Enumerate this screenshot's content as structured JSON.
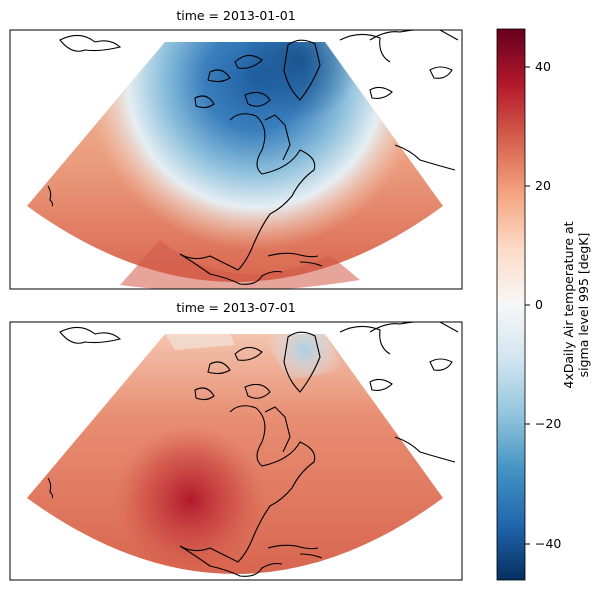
{
  "panels": [
    {
      "title": "time = 2013-01-01",
      "date": "2013-01-01"
    },
    {
      "title": "time = 2013-07-01",
      "date": "2013-07-01"
    }
  ],
  "colorbar": {
    "label_line1": "4xDaily Air temperature at",
    "label_line2": "sigma level 995 [degK]",
    "min": -47,
    "max": 47,
    "ticks": [
      "40",
      "20",
      "0",
      "−20",
      "−40"
    ],
    "tick_values": [
      40,
      20,
      0,
      -20,
      -40
    ],
    "colormap": "RdBu_r",
    "colors": [
      "#053061",
      "#2166ac",
      "#4393c3",
      "#92c5de",
      "#d1e5f0",
      "#f7f7f7",
      "#fddbc7",
      "#f4a582",
      "#d6604d",
      "#b2182b",
      "#67001f"
    ]
  },
  "projection": "Lambert Conformal (North America)"
}
